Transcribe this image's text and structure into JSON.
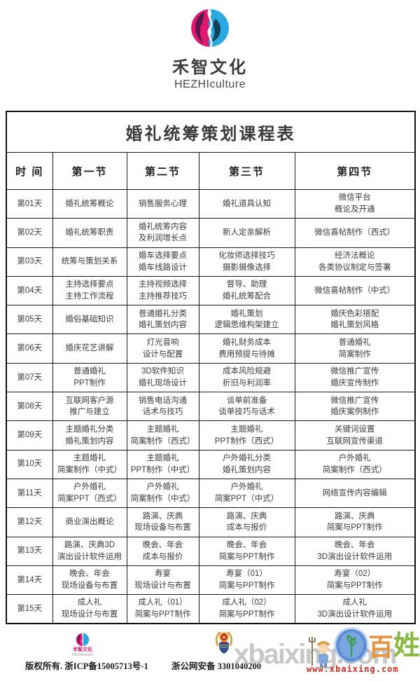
{
  "brand": {
    "name_cn": "禾智文化",
    "name_en": "HEZHIculture",
    "colors": {
      "pink": "#e0196e",
      "dark_purple": "#55194e",
      "blue": "#2aa9e0",
      "dark_navy": "#14405c"
    }
  },
  "table": {
    "title": "婚礼统筹策划课程表",
    "headers": [
      "时  间",
      "第一节",
      "第二节",
      "第三节",
      "第四节"
    ],
    "rows": [
      {
        "day": "第01天",
        "cells": [
          "婚礼统筹概论",
          "销售服务心理",
          "婚礼道具认知",
          "微信平台\n概论及开通"
        ]
      },
      {
        "day": "第02天",
        "cells": [
          "婚礼统筹职责",
          "婚礼统筹内容\n及利润增长点",
          "新人定亲解析",
          "微信喜帖制作（西式）"
        ]
      },
      {
        "day": "第03天",
        "cells": [
          "统筹与策划关系",
          "婚车选择要点\n婚车线路设计",
          "化妆师选择技巧\n摄影摄像选择",
          "经济法概论\n各类协议制定与签署"
        ]
      },
      {
        "day": "第04天",
        "cells": [
          "主持选择要点\n主持工作流程",
          "主持视频选择\n主持推荐技巧",
          "督导、助理\n婚礼统筹配合",
          "微信喜帖制作（中式）"
        ]
      },
      {
        "day": "第05天",
        "cells": [
          "婚俗基础知识",
          "普通婚礼分类\n婚礼策划内容",
          "婚礼策划\n逻辑思维构架建立",
          "婚庆色彩搭配\n婚礼策划风格"
        ]
      },
      {
        "day": "第06天",
        "cells": [
          "婚庆花艺讲解",
          "灯光音响\n设计与配置",
          "婚礼财务成本\n费用预提与待摊",
          "普通婚礼\n简案制作"
        ]
      },
      {
        "day": "第07天",
        "cells": [
          "普通婚礼\nPPT制作",
          "3D软件知识\n婚礼现场设计",
          "成本风险规避\n折旧与利润率",
          "微信推广宣传\n婚庆宣传制作"
        ]
      },
      {
        "day": "第08天",
        "cells": [
          "互联网客户源\n推广与建立",
          "销售电话沟通\n话术与技巧",
          "谈单前准备\n谈单技巧与话术",
          "微信推广宣传\n婚庆案例制作"
        ]
      },
      {
        "day": "第09天",
        "cells": [
          "主题婚礼分类\n婚礼策划内容",
          "主题婚礼\n简案制作（西式）",
          "主题婚礼\nPPT制作（西式）",
          "关键词设置\n互联网宣传渠道"
        ]
      },
      {
        "day": "第10天",
        "cells": [
          "主题婚礼\n简案制作（中式）",
          "主题婚礼\nPPT制作（中式）",
          "户外婚礼分类\n婚礼策划内容",
          "户外婚礼\n简案制作（西式）"
        ]
      },
      {
        "day": "第11天",
        "cells": [
          "户外婚礼\n简案PPT（西式）",
          "户外婚礼\n简案制作（中式）",
          "户外婚礼\n简案PPT（中式）",
          "网络宣传内容编辑"
        ]
      },
      {
        "day": "第12天",
        "cells": [
          "商业演出概论",
          "路演、庆典\n现场设备与布置",
          "路演、庆典\n成本与报价",
          "路演、庆典\n简案与PPT制作"
        ]
      },
      {
        "day": "第13天",
        "cells": [
          "路演、庆典3D\n演出设计软件运用",
          "晚会、年会\n成本与报价",
          "晚会、年会\n简案与PPT制作",
          "晚会、年会\n3D演出设计软件运用"
        ]
      },
      {
        "day": "第14天",
        "cells": [
          "晚会、年会\n现场设备与布置",
          "寿宴\n现场设计与布置",
          "寿宴（01）\n简案与PPT制作",
          "寿宴（02）\n简案与PPT制作"
        ]
      },
      {
        "day": "第15天",
        "cells": [
          "成人礼\n现场设计与布置",
          "成人礼（01）\n简案与PPT制作",
          "成人礼（02）\n简案与PPT制作",
          "成人礼\n3D演出设计软件运用"
        ]
      }
    ]
  },
  "footer": {
    "logo_cn": "禾智文化",
    "logo_en": "HEZHIculture",
    "copyright": "版权所有. 浙ICP备15005713号-1",
    "police_text": "浙公网安备 3301040200",
    "mascot_char_1": "百",
    "mascot_char_2": "姓"
  },
  "watermark": {
    "big_text": "xbaixing.com",
    "url_text": "www.xbaixing.com"
  }
}
